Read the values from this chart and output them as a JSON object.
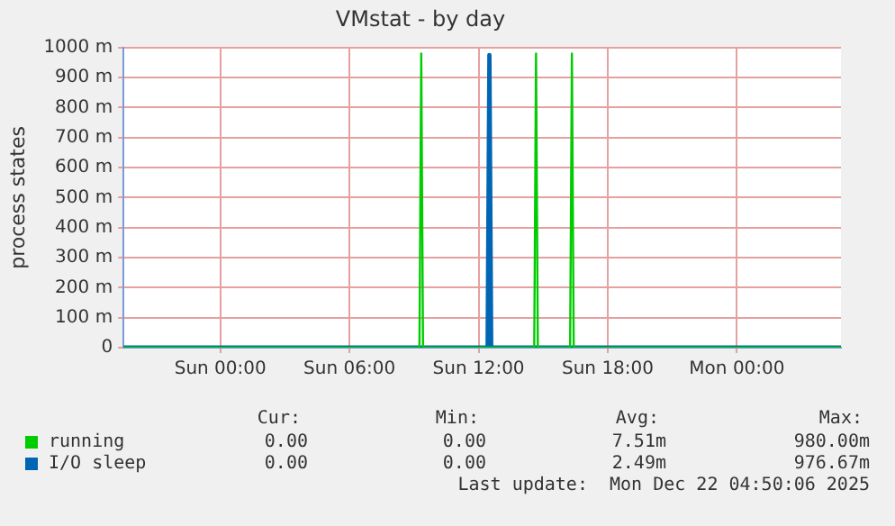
{
  "chart_data": {
    "type": "line",
    "title": "VMstat - by day",
    "ylabel": "process states",
    "xlim": [
      "2025-12-20T19:30",
      "2025-12-22T04:50"
    ],
    "xticks": [
      {
        "value": "2025-12-21T00:00",
        "label": "Sun 00:00"
      },
      {
        "value": "2025-12-21T06:00",
        "label": "Sun 06:00"
      },
      {
        "value": "2025-12-21T12:00",
        "label": "Sun 12:00"
      },
      {
        "value": "2025-12-21T18:00",
        "label": "Sun 18:00"
      },
      {
        "value": "2025-12-22T00:00",
        "label": "Mon 00:00"
      }
    ],
    "ylim": [
      0,
      1000
    ],
    "yticks": [
      0,
      {
        "value": 100,
        "label": "100 m"
      },
      {
        "value": 200,
        "label": "200 m"
      },
      {
        "value": 300,
        "label": "300 m"
      },
      {
        "value": 400,
        "label": "400 m"
      },
      {
        "value": 500,
        "label": "500 m"
      },
      {
        "value": 600,
        "label": "600 m"
      },
      {
        "value": 700,
        "label": "700 m"
      },
      {
        "value": 800,
        "label": "800 m"
      },
      {
        "value": 900,
        "label": "900 m"
      },
      {
        "value": 1000,
        "label": "1000 m"
      }
    ],
    "grid": true,
    "legend": "bottom",
    "marker": "none",
    "line_style": "solid",
    "series": [
      {
        "name": "running",
        "color": "#00cc00",
        "x": [
          "2025-12-20T19:30",
          "2025-12-21T09:15",
          "2025-12-21T09:20",
          "2025-12-21T09:25",
          "2025-12-21T14:35",
          "2025-12-21T14:40",
          "2025-12-21T14:45",
          "2025-12-21T16:15",
          "2025-12-21T16:20",
          "2025-12-21T16:25",
          "2025-12-22T04:50"
        ],
        "values": [
          0,
          0,
          980,
          0,
          0,
          980,
          0,
          0,
          980,
          0,
          0
        ]
      },
      {
        "name": "I/O sleep",
        "color": "#0066b3",
        "x": [
          "2025-12-20T19:30",
          "2025-12-21T12:25",
          "2025-12-21T12:30",
          "2025-12-21T12:35",
          "2025-12-22T04:50"
        ],
        "values": [
          0,
          0,
          975,
          0,
          0
        ]
      }
    ],
    "annotations": [
      "Cur:",
      "Min:",
      "Avg:",
      "Max:",
      "0.00",
      "0.00",
      "7.51m",
      "980.00m",
      "0.00",
      "0.00",
      "2.49m",
      "976.67m",
      "Last update:  Mon Dec 22 04:50:06 2025"
    ]
  }
}
